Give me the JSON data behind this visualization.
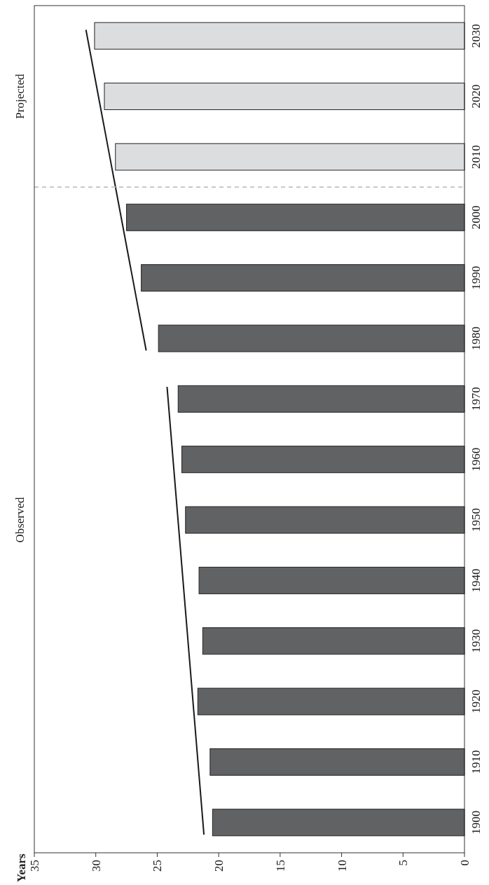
{
  "chart_data": {
    "type": "bar",
    "orientation": "horizontal",
    "ylabel": "Years",
    "x": [
      1900,
      1910,
      1920,
      1930,
      1940,
      1950,
      1960,
      1970,
      1980,
      1990,
      2000,
      2010,
      2020,
      2030
    ],
    "ylim": [
      1895,
      2035
    ],
    "yticks": [
      1900,
      1910,
      1920,
      1930,
      1940,
      1950,
      1960,
      1970,
      1980,
      1990,
      2000,
      2010,
      2020,
      2030
    ],
    "xlim": [
      35,
      0
    ],
    "xticks": [
      35,
      30,
      25,
      20,
      15,
      10,
      5,
      0
    ],
    "grid": false,
    "series": [
      {
        "values": [
          20.5,
          20.7,
          21.7,
          21.3,
          21.6,
          22.7,
          23.0,
          23.3,
          24.9,
          26.3,
          27.5,
          28.4,
          29.3,
          30.1
        ],
        "colors": [
          "#616264",
          "#616264",
          "#616264",
          "#616264",
          "#616264",
          "#616264",
          "#616264",
          "#616264",
          "#616264",
          "#616264",
          "#616264",
          "#dcdddf",
          "#dcdddf",
          "#dcdddf"
        ]
      },
      {
        "type": "line",
        "color": "#1a1a1a",
        "x": [
          1898,
          1972
        ],
        "values": [
          21.2,
          24.2
        ]
      },
      {
        "type": "line",
        "color": "#1a1a1a",
        "x": [
          1978,
          2031
        ],
        "values": [
          25.9,
          30.8
        ]
      }
    ],
    "ref_lines": [
      {
        "axis": "y",
        "value": 2005,
        "color": "#c8c8c8",
        "line_style": "dashed"
      }
    ],
    "annotations": [
      "Observed",
      "Projected"
    ]
  }
}
